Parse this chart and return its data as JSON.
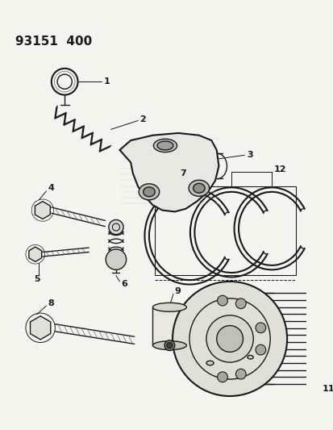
{
  "title": "93151  400",
  "bg_color": "#f5f5f0",
  "line_color": "#1a1a1a",
  "gray_color": "#666666",
  "figsize": [
    4.14,
    5.33
  ],
  "dpi": 100
}
